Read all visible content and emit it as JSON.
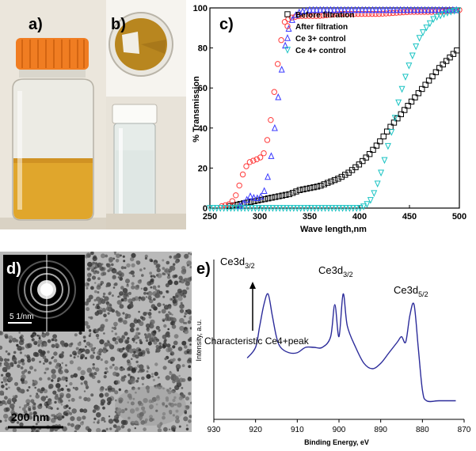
{
  "panel_labels": {
    "a": "a)",
    "b": "b)",
    "c": "c)",
    "d": "d)",
    "e": "e)"
  },
  "photo_a": {
    "description_colors": {
      "liquid": "#e0a62c",
      "cap": "#f07d22",
      "background": "#e9e4da"
    }
  },
  "tem": {
    "scale_bar": "200 nm",
    "inset_scale": "5 1/nm"
  },
  "chart_data": [
    {
      "type": "scatter",
      "title": "",
      "xlabel": "Wave length,nm",
      "ylabel": "% Transmission",
      "xlim": [
        250,
        500
      ],
      "ylim": [
        0,
        100
      ],
      "xticks": [
        250,
        300,
        350,
        400,
        450,
        500
      ],
      "yticks": [
        0,
        20,
        40,
        60,
        80,
        100
      ],
      "legend_position": "top-left-inside",
      "series": [
        {
          "name": "Before filtration",
          "marker": "square",
          "color": "#000000",
          "x": [
            270,
            280,
            290,
            300,
            310,
            320,
            330,
            340,
            350,
            360,
            370,
            380,
            390,
            400,
            410,
            420,
            430,
            440,
            450,
            460,
            470,
            480,
            490,
            500
          ],
          "y": [
            1,
            2,
            3,
            4,
            5,
            6,
            7,
            9,
            10,
            11,
            13,
            15,
            18,
            22,
            27,
            33,
            40,
            46,
            52,
            58,
            64,
            70,
            75,
            80
          ]
        },
        {
          "name": "After filtration",
          "marker": "circle",
          "color": "#ff3b3b",
          "x": [
            262,
            270,
            275,
            280,
            285,
            290,
            295,
            300,
            305,
            310,
            315,
            320,
            325,
            330,
            340,
            350,
            360,
            380,
            400,
            420,
            450,
            480,
            500
          ],
          "y": [
            1,
            2,
            5,
            12,
            20,
            23,
            24,
            25,
            28,
            40,
            60,
            80,
            93,
            95,
            96,
            96,
            96,
            97,
            97,
            97,
            98,
            98,
            99
          ]
        },
        {
          "name": "Ce 3+ control",
          "marker": "triangle-up",
          "color": "#3a3aff",
          "x": [
            280,
            285,
            290,
            295,
            300,
            305,
            310,
            315,
            320,
            325,
            330,
            335,
            340,
            350,
            360,
            380,
            400,
            450,
            500
          ],
          "y": [
            1,
            3,
            6,
            5,
            5,
            9,
            20,
            40,
            62,
            80,
            92,
            96,
            98,
            99,
            99,
            99,
            99,
            99,
            99
          ]
        },
        {
          "name": "Ce 4+ control",
          "marker": "triangle-down",
          "color": "#19c3c3",
          "x": [
            250,
            300,
            350,
            390,
            400,
            405,
            410,
            415,
            420,
            425,
            430,
            435,
            440,
            445,
            450,
            455,
            460,
            465,
            470,
            475,
            480,
            490,
            500
          ],
          "y": [
            0,
            0,
            0,
            0,
            0,
            1,
            3,
            8,
            15,
            24,
            34,
            44,
            55,
            64,
            72,
            79,
            85,
            89,
            92,
            95,
            96,
            98,
            99
          ]
        }
      ]
    },
    {
      "type": "line",
      "title": "",
      "xlabel": "Binding Energy, eV",
      "ylabel": "Intensity, a.u.",
      "xlim": [
        930,
        870
      ],
      "xticks": [
        930,
        920,
        910,
        900,
        890,
        880,
        870
      ],
      "color": "#2b2b9a",
      "x": [
        922,
        920,
        919,
        918,
        917,
        916,
        915,
        914,
        912,
        910,
        908,
        906,
        904,
        902,
        901,
        900,
        899,
        898,
        896,
        894,
        892,
        890,
        888,
        886,
        885,
        884,
        883,
        882,
        881,
        880,
        879,
        876,
        872
      ],
      "y": [
        5,
        6,
        8,
        10,
        11,
        9,
        7,
        6,
        5.5,
        5.5,
        6,
        6,
        6,
        7,
        10,
        7,
        11,
        8,
        6,
        4.5,
        4,
        4.5,
        5.5,
        6.5,
        7,
        6.5,
        9,
        10,
        6,
        2,
        1,
        1,
        1
      ],
      "annotations": [
        {
          "text": "Ce3d",
          "sub": "3/2",
          "x": 917
        },
        {
          "text": "Ce3d",
          "sub": "3/2",
          "x": 899
        },
        {
          "text": "Ce3d",
          "sub": "5/2",
          "x": 882.5
        },
        {
          "text": "Characteristic Ce4+peak",
          "x": 917
        }
      ]
    }
  ]
}
